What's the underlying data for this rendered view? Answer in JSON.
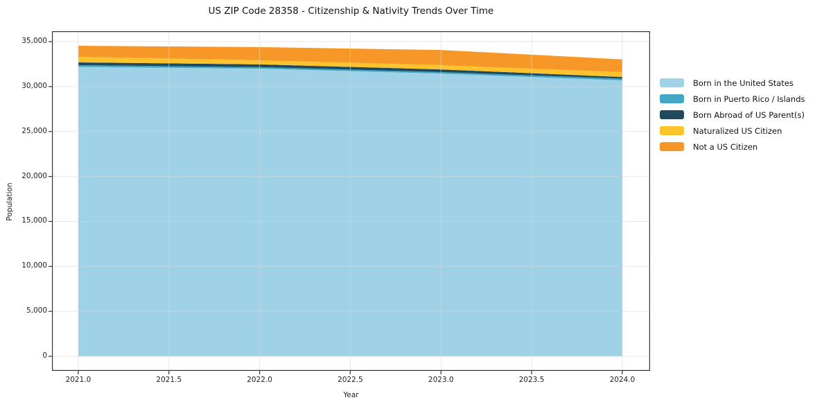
{
  "figure": {
    "title": "US ZIP Code 28358 - Citizenship & Nativity Trends Over Time"
  },
  "chart_data": {
    "type": "area",
    "stacked": true,
    "title": "US ZIP Code 28358 - Citizenship & Nativity Trends Over Time",
    "xlabel": "Year",
    "ylabel": "Population",
    "x": [
      2021,
      2022,
      2023,
      2024
    ],
    "series": [
      {
        "name": "Born in the United States",
        "color": "#9fd1e7",
        "values": [
          32190,
          32000,
          31450,
          30690
        ]
      },
      {
        "name": "Born in Puerto Rico / Islands",
        "color": "#41a7c4",
        "values": [
          190,
          160,
          160,
          190
        ]
      },
      {
        "name": "Born Abroad of US Parent(s)",
        "color": "#1f4a5e",
        "values": [
          310,
          310,
          300,
          190
        ]
      },
      {
        "name": "Naturalized US Citizen",
        "color": "#fcc32d",
        "values": [
          620,
          460,
          470,
          540
        ]
      },
      {
        "name": "Not a US Citizen",
        "color": "#f79727",
        "values": [
          1230,
          1460,
          1690,
          1420
        ]
      }
    ],
    "x_tick_values": [
      2021.0,
      2021.5,
      2022.0,
      2022.5,
      2023.0,
      2023.5,
      2024.0
    ],
    "x_tick_labels": [
      "2021.0",
      "2021.5",
      "2022.0",
      "2022.5",
      "2023.0",
      "2023.5",
      "2024.0"
    ],
    "y_tick_values": [
      0,
      5000,
      10000,
      15000,
      20000,
      25000,
      30000,
      35000
    ],
    "y_tick_labels": [
      "0",
      "5,000",
      "10,000",
      "15,000",
      "20,000",
      "25,000",
      "30,000",
      "35,000"
    ],
    "xlim": [
      2020.855,
      2024.153
    ],
    "ylim": [
      -1620,
      36160
    ],
    "grid": true,
    "grid_color": "#d9d9d9",
    "spine_color": "#333333",
    "legend_position": "right-outside"
  }
}
